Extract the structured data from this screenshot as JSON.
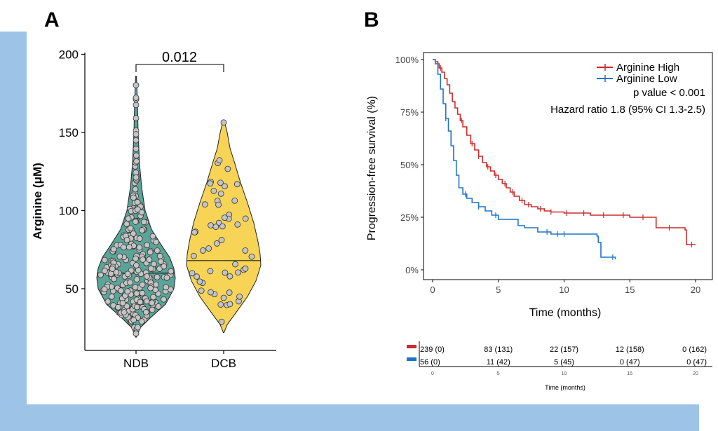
{
  "panels": {
    "a_label": "A",
    "b_label": "B"
  },
  "chart_data": [
    {
      "type": "violin",
      "title": "",
      "xlabel": "",
      "ylabel": "Arginine (μM)",
      "ylim": [
        15,
        202
      ],
      "yticks": [
        50,
        100,
        150,
        200
      ],
      "categories": [
        "NDB",
        "DCB"
      ],
      "medians": [
        60,
        68
      ],
      "range": [
        [
          19,
          186
        ],
        [
          22,
          158
        ]
      ],
      "n_points": [
        239,
        56
      ],
      "colors": [
        "#5aa498",
        "#f7d456"
      ],
      "comparison": {
        "from": "NDB",
        "to": "DCB",
        "p_label": "0.012"
      }
    },
    {
      "type": "line",
      "subtype": "kaplan-meier",
      "xlabel": "Time (months)",
      "ylabel": "Progression-free survival (%)",
      "xlim": [
        -1,
        21
      ],
      "ylim": [
        -0.03,
        1.03
      ],
      "xticks": [
        0,
        5,
        10,
        15,
        20
      ],
      "yticks": [
        0,
        0.25,
        0.5,
        0.75,
        1.0
      ],
      "ytick_labels": [
        "0%",
        "25%",
        "50%",
        "75%",
        "100%"
      ],
      "series": [
        {
          "name": "Arginine High",
          "color": "#cc2b2b",
          "x": [
            0,
            0.2,
            0.4,
            0.5,
            0.7,
            0.9,
            1.1,
            1.3,
            1.5,
            1.7,
            1.9,
            2.1,
            2.3,
            2.6,
            2.9,
            3.2,
            3.5,
            3.8,
            4.1,
            4.4,
            4.7,
            5.0,
            5.3,
            5.6,
            5.9,
            6.2,
            6.6,
            7.0,
            7.5,
            8.0,
            8.5,
            9.0,
            10.0,
            12.0,
            15.0,
            16.9,
            17.0,
            19.0,
            19.2,
            19.3,
            20.0
          ],
          "y": [
            1.0,
            0.99,
            0.98,
            0.96,
            0.94,
            0.91,
            0.88,
            0.84,
            0.8,
            0.77,
            0.74,
            0.71,
            0.68,
            0.64,
            0.6,
            0.57,
            0.54,
            0.51,
            0.49,
            0.47,
            0.45,
            0.43,
            0.41,
            0.39,
            0.37,
            0.35,
            0.33,
            0.31,
            0.3,
            0.29,
            0.28,
            0.275,
            0.27,
            0.26,
            0.25,
            0.25,
            0.2,
            0.2,
            0.19,
            0.12,
            0.12
          ],
          "censor_x": [
            0.6,
            2.2,
            3.0,
            3.5,
            4.2,
            4.8,
            5.5,
            6.1,
            6.8,
            7.3,
            8.2,
            9.0,
            10.2,
            11.5,
            13.0,
            14.5,
            16.0,
            18.0,
            19.7
          ]
        },
        {
          "name": "Arginine Low",
          "color": "#1e74c6",
          "x": [
            0,
            0.2,
            0.4,
            0.6,
            0.8,
            1.0,
            1.2,
            1.4,
            1.6,
            1.8,
            2.0,
            2.3,
            2.6,
            3.0,
            3.5,
            4.0,
            4.5,
            5.0,
            6.5,
            7.0,
            8.0,
            9.0,
            10.0,
            12.5,
            12.6,
            12.8,
            13.9
          ],
          "y": [
            1.0,
            0.98,
            0.93,
            0.86,
            0.79,
            0.72,
            0.66,
            0.59,
            0.52,
            0.45,
            0.39,
            0.36,
            0.34,
            0.32,
            0.3,
            0.28,
            0.26,
            0.24,
            0.21,
            0.2,
            0.18,
            0.17,
            0.17,
            0.16,
            0.13,
            0.06,
            0.05
          ],
          "censor_x": [
            1.0,
            2.5,
            3.5,
            4.8,
            8.7,
            9.5,
            10.0,
            13.7
          ]
        }
      ],
      "annotations": [
        "p value < 0.001",
        "Hazard ratio 1.8 (95% CI 1.3-2.5)"
      ],
      "risk_table": {
        "title": "Time (months)",
        "times": [
          0,
          5,
          10,
          15,
          20
        ],
        "rows": [
          {
            "group": "Arginine High",
            "values": [
              "239 (0)",
              "83 (131)",
              "22 (157)",
              "12 (158)",
              "0 (162)"
            ]
          },
          {
            "group": "Arginine Low",
            "values": [
              "56 (0)",
              "11 (42)",
              "5 (45)",
              "0 (47)",
              "0 (47)"
            ]
          }
        ]
      }
    }
  ]
}
